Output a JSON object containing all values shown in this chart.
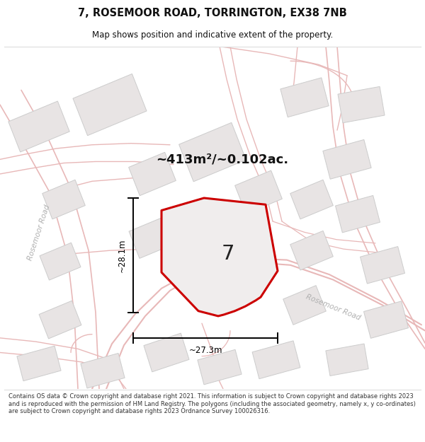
{
  "title_line1": "7, ROSEMOOR ROAD, TORRINGTON, EX38 7NB",
  "title_line2": "Map shows position and indicative extent of the property.",
  "area_text": "~413m²/~0.102ac.",
  "width_label": "~27.3m",
  "height_label": "~28.1m",
  "plot_number": "7",
  "footer_text": "Contains OS data © Crown copyright and database right 2021. This information is subject to Crown copyright and database rights 2023 and is reproduced with the permission of HM Land Registry. The polygons (including the associated geometry, namely x, y co-ordinates) are subject to Crown copyright and database rights 2023 Ordnance Survey 100026316.",
  "map_bg": "#f9f7f7",
  "road_color": "#e8b8b8",
  "building_fill": "#e8e4e4",
  "building_edge": "#cccccc",
  "plot_fill": "#f0eded",
  "plot_edge": "#cc0000",
  "dim_color": "#000000",
  "road_label_color": "#aaaaaa",
  "title_color": "#111111",
  "footer_color": "#333333"
}
